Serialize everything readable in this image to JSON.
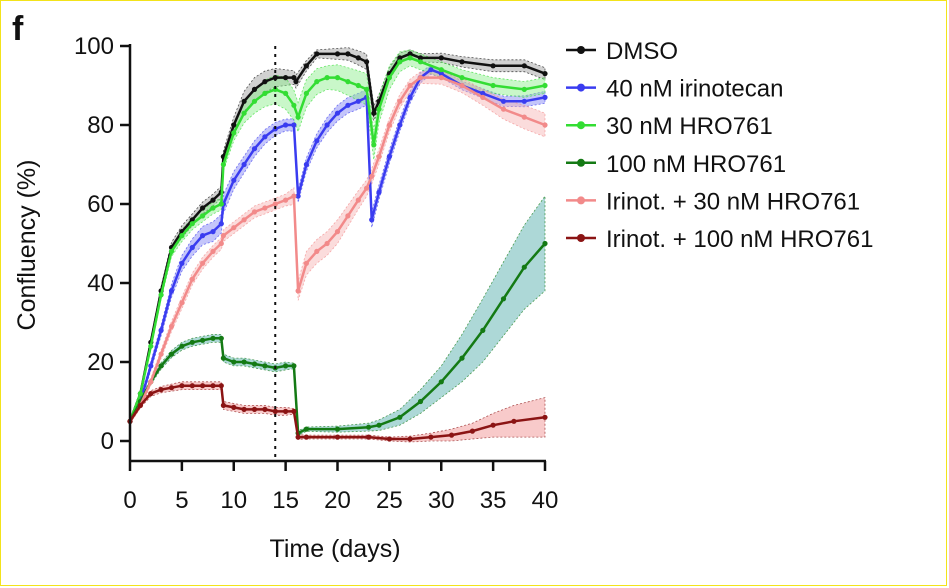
{
  "panel_label": "f",
  "chart_data": {
    "type": "line",
    "title": "",
    "xlabel": "Time (days)",
    "ylabel": "Confluency (%)",
    "xlim": [
      0,
      40
    ],
    "ylim": [
      0,
      100
    ],
    "xticks": [
      0,
      5,
      10,
      15,
      20,
      25,
      30,
      35,
      40
    ],
    "yticks": [
      0,
      20,
      40,
      60,
      80,
      100
    ],
    "grid": false,
    "legend_position": "right",
    "treatment_marker_day": 14,
    "series": [
      {
        "name": "DMSO",
        "color": "#111111",
        "band_color": "#999999",
        "points": [
          [
            0,
            5
          ],
          [
            1,
            12
          ],
          [
            2,
            25
          ],
          [
            3,
            38
          ],
          [
            4,
            49
          ],
          [
            5,
            53
          ],
          [
            6,
            56
          ],
          [
            7,
            59
          ],
          [
            8,
            61
          ],
          [
            8.8,
            63
          ],
          [
            9,
            72
          ],
          [
            10,
            80
          ],
          [
            11,
            86
          ],
          [
            12,
            89
          ],
          [
            13,
            91
          ],
          [
            14,
            92
          ],
          [
            15,
            92
          ],
          [
            15.8,
            92
          ],
          [
            16,
            91
          ],
          [
            17,
            95
          ],
          [
            18,
            98
          ],
          [
            20,
            98
          ],
          [
            21,
            98
          ],
          [
            22,
            97
          ],
          [
            22.8,
            96
          ],
          [
            23.5,
            83
          ],
          [
            24,
            86
          ],
          [
            25,
            93
          ],
          [
            26,
            97
          ],
          [
            27,
            98
          ],
          [
            28,
            97
          ],
          [
            30,
            97
          ],
          [
            32,
            96
          ],
          [
            35,
            95
          ],
          [
            38,
            95
          ],
          [
            40,
            93
          ]
        ],
        "err": [
          [
            0,
            0.5
          ],
          [
            5,
            1.5
          ],
          [
            9,
            1.5
          ],
          [
            12,
            3
          ],
          [
            15,
            2
          ],
          [
            18,
            1
          ],
          [
            23,
            2
          ],
          [
            27,
            1
          ],
          [
            35,
            1.5
          ],
          [
            40,
            1.5
          ]
        ]
      },
      {
        "name": "40 nM irinotecan",
        "color": "#3a3cf0",
        "band_color": "#7d7ff5",
        "points": [
          [
            0,
            5
          ],
          [
            1,
            10
          ],
          [
            2,
            19
          ],
          [
            3,
            28
          ],
          [
            4,
            38
          ],
          [
            5,
            45
          ],
          [
            6,
            49
          ],
          [
            7,
            52
          ],
          [
            8,
            53
          ],
          [
            8.8,
            55
          ],
          [
            9,
            60
          ],
          [
            10,
            66
          ],
          [
            11,
            70
          ],
          [
            12,
            74
          ],
          [
            13,
            77
          ],
          [
            14,
            79
          ],
          [
            15,
            80
          ],
          [
            15.8,
            80
          ],
          [
            16.2,
            62
          ],
          [
            17,
            70
          ],
          [
            18,
            76
          ],
          [
            19,
            80
          ],
          [
            20,
            83
          ],
          [
            21,
            85
          ],
          [
            22,
            86
          ],
          [
            22.8,
            87
          ],
          [
            23.3,
            56
          ],
          [
            24,
            63
          ],
          [
            25,
            72
          ],
          [
            26,
            80
          ],
          [
            27,
            87
          ],
          [
            28,
            92
          ],
          [
            29,
            94
          ],
          [
            30,
            93
          ],
          [
            32,
            90
          ],
          [
            34,
            88
          ],
          [
            36,
            86
          ],
          [
            38,
            86
          ],
          [
            40,
            87
          ]
        ],
        "err": [
          [
            0,
            0.5
          ],
          [
            5,
            2
          ],
          [
            8,
            2.5
          ],
          [
            12,
            2
          ],
          [
            15,
            1.5
          ],
          [
            20,
            2
          ],
          [
            23,
            2
          ],
          [
            27,
            1.5
          ],
          [
            30,
            1
          ],
          [
            40,
            1.5
          ]
        ]
      },
      {
        "name": "30 nM HRO761",
        "color": "#33dd33",
        "band_color": "#88ee88",
        "points": [
          [
            0,
            5
          ],
          [
            1,
            12
          ],
          [
            2,
            24
          ],
          [
            3,
            37
          ],
          [
            4,
            48
          ],
          [
            5,
            52
          ],
          [
            6,
            55
          ],
          [
            7,
            57
          ],
          [
            8,
            59
          ],
          [
            8.8,
            60
          ],
          [
            9,
            70
          ],
          [
            10,
            78
          ],
          [
            11,
            83
          ],
          [
            12,
            86
          ],
          [
            13,
            88
          ],
          [
            14,
            89
          ],
          [
            15,
            88
          ],
          [
            15.8,
            85
          ],
          [
            16.2,
            82
          ],
          [
            17,
            88
          ],
          [
            18,
            91
          ],
          [
            19,
            92
          ],
          [
            20,
            92
          ],
          [
            21,
            91
          ],
          [
            22,
            90
          ],
          [
            22.8,
            89
          ],
          [
            23.5,
            75
          ],
          [
            24,
            84
          ],
          [
            25,
            92
          ],
          [
            26,
            96
          ],
          [
            27,
            97
          ],
          [
            28,
            96
          ],
          [
            30,
            94
          ],
          [
            32,
            92
          ],
          [
            35,
            90
          ],
          [
            38,
            89
          ],
          [
            40,
            90
          ]
        ],
        "err": [
          [
            0,
            0.5
          ],
          [
            5,
            1.5
          ],
          [
            9,
            1.5
          ],
          [
            12,
            3
          ],
          [
            15,
            4
          ],
          [
            19,
            3
          ],
          [
            23,
            4
          ],
          [
            27,
            2
          ],
          [
            35,
            2
          ],
          [
            40,
            2
          ]
        ]
      },
      {
        "name": "100 nM HRO761",
        "color": "#147a14",
        "band_color": "#4aa9a6",
        "points": [
          [
            0,
            5
          ],
          [
            1,
            10
          ],
          [
            2,
            15
          ],
          [
            3,
            19
          ],
          [
            4,
            22
          ],
          [
            5,
            24
          ],
          [
            6,
            25
          ],
          [
            7,
            25.5
          ],
          [
            8,
            26
          ],
          [
            8.8,
            26
          ],
          [
            9,
            21
          ],
          [
            10,
            20
          ],
          [
            11,
            20
          ],
          [
            12,
            19.5
          ],
          [
            13,
            19
          ],
          [
            14,
            18.5
          ],
          [
            15,
            19
          ],
          [
            15.8,
            19
          ],
          [
            16.2,
            2
          ],
          [
            17,
            3
          ],
          [
            20,
            3
          ],
          [
            23,
            3.5
          ],
          [
            24,
            4
          ],
          [
            26,
            6
          ],
          [
            28,
            10
          ],
          [
            30,
            15
          ],
          [
            32,
            21
          ],
          [
            34,
            28
          ],
          [
            36,
            36
          ],
          [
            38,
            44
          ],
          [
            40,
            50
          ]
        ],
        "err": [
          [
            0,
            0.5
          ],
          [
            5,
            1
          ],
          [
            9,
            1
          ],
          [
            15,
            1
          ],
          [
            16.5,
            0.5
          ],
          [
            23,
            1
          ],
          [
            26,
            2
          ],
          [
            30,
            4
          ],
          [
            34,
            8
          ],
          [
            37,
            10
          ],
          [
            40,
            12
          ]
        ]
      },
      {
        "name": "Irinot. + 30 nM HRO761",
        "color": "#f28a8a",
        "band_color": "#f6b2b2",
        "points": [
          [
            0,
            5
          ],
          [
            1,
            9
          ],
          [
            2,
            15
          ],
          [
            3,
            22
          ],
          [
            4,
            29
          ],
          [
            5,
            35
          ],
          [
            6,
            41
          ],
          [
            7,
            45
          ],
          [
            8,
            48
          ],
          [
            8.8,
            50
          ],
          [
            9,
            52
          ],
          [
            10,
            54
          ],
          [
            11,
            56
          ],
          [
            12,
            58
          ],
          [
            13,
            59
          ],
          [
            14,
            60
          ],
          [
            15,
            61
          ],
          [
            15.8,
            62
          ],
          [
            16.2,
            38
          ],
          [
            17,
            45
          ],
          [
            18,
            48
          ],
          [
            19,
            50
          ],
          [
            20,
            53
          ],
          [
            21,
            57
          ],
          [
            22,
            61
          ],
          [
            22.8,
            64
          ],
          [
            23.3,
            67
          ],
          [
            24,
            72
          ],
          [
            25,
            80
          ],
          [
            26,
            86
          ],
          [
            27,
            90
          ],
          [
            28,
            92
          ],
          [
            30,
            92
          ],
          [
            32,
            90
          ],
          [
            34,
            87
          ],
          [
            36,
            84
          ],
          [
            38,
            82
          ],
          [
            40,
            80
          ]
        ],
        "err": [
          [
            0,
            0.5
          ],
          [
            5,
            1.5
          ],
          [
            10,
            1.5
          ],
          [
            15,
            1.5
          ],
          [
            17,
            3
          ],
          [
            20,
            3
          ],
          [
            23,
            2
          ],
          [
            28,
            1.5
          ],
          [
            34,
            2
          ],
          [
            38,
            3
          ],
          [
            40,
            3
          ]
        ]
      },
      {
        "name": "Irinot. + 100 nM HRO761",
        "color": "#8b1414",
        "band_color": "#f08a8a",
        "points": [
          [
            0,
            5
          ],
          [
            1,
            9
          ],
          [
            2,
            12
          ],
          [
            3,
            13
          ],
          [
            4,
            13.5
          ],
          [
            5,
            14
          ],
          [
            6,
            14
          ],
          [
            7,
            14
          ],
          [
            8,
            14
          ],
          [
            8.8,
            14
          ],
          [
            9,
            9
          ],
          [
            10,
            8.5
          ],
          [
            11,
            8
          ],
          [
            12,
            8
          ],
          [
            13,
            8
          ],
          [
            14,
            7.5
          ],
          [
            15,
            7.5
          ],
          [
            15.8,
            7.5
          ],
          [
            16.2,
            1
          ],
          [
            17,
            1
          ],
          [
            20,
            1
          ],
          [
            23,
            1
          ],
          [
            25,
            0.5
          ],
          [
            27,
            0.5
          ],
          [
            29,
            1
          ],
          [
            31,
            1.5
          ],
          [
            33,
            2.5
          ],
          [
            35,
            4
          ],
          [
            37,
            5
          ],
          [
            40,
            6
          ]
        ],
        "err": [
          [
            0,
            0.5
          ],
          [
            5,
            1
          ],
          [
            9,
            1
          ],
          [
            15,
            1
          ],
          [
            16.5,
            0.5
          ],
          [
            25,
            0.5
          ],
          [
            29,
            1
          ],
          [
            33,
            2
          ],
          [
            37,
            4
          ],
          [
            40,
            5
          ]
        ]
      }
    ]
  }
}
